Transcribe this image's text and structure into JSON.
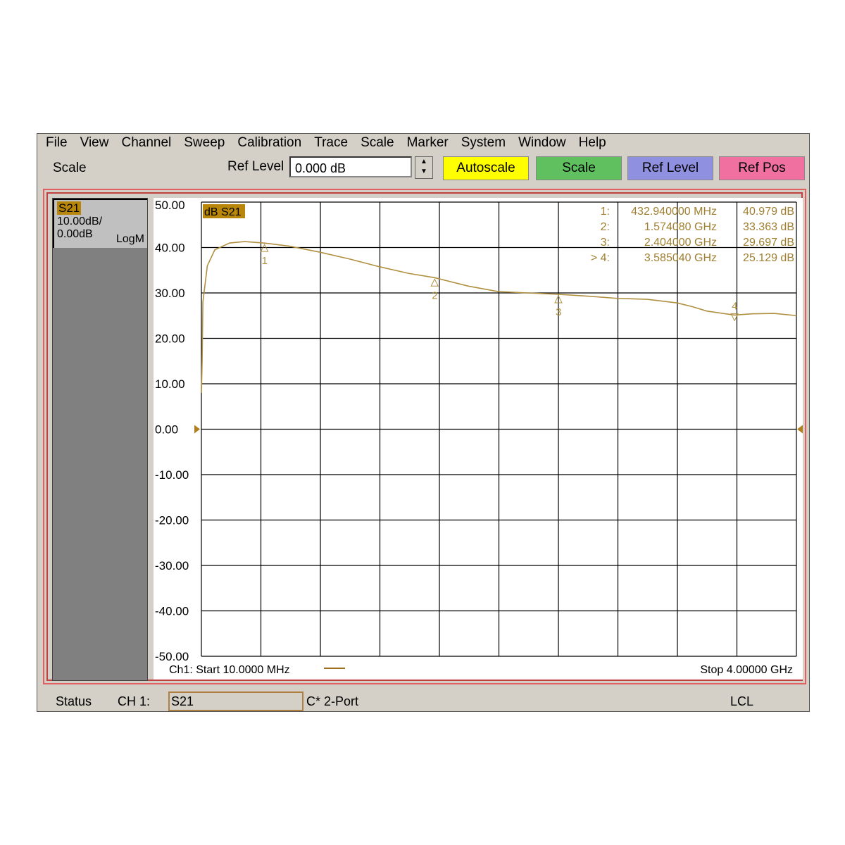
{
  "menu": [
    "File",
    "View",
    "Channel",
    "Sweep",
    "Calibration",
    "Trace",
    "Scale",
    "Marker",
    "System",
    "Window",
    "Help"
  ],
  "toolbar": {
    "section": "Scale",
    "ref_level_label": "Ref Level",
    "ref_level_value": "0.000 dB",
    "buttons": [
      {
        "label": "Autoscale",
        "color": "#ffff00"
      },
      {
        "label": "Scale",
        "color": "#60c060"
      },
      {
        "label": "Ref Level",
        "color": "#9090e0"
      },
      {
        "label": "Ref Pos",
        "color": "#f070a0"
      }
    ]
  },
  "trace_info": {
    "name": "S21",
    "scale": "10.00dB/",
    "ref": "0.00dB",
    "format": "LogM"
  },
  "plot_label": "dB S21",
  "markers": [
    {
      "id": "1:",
      "freq": "432.940000 MHz",
      "value": "40.979 dB"
    },
    {
      "id": "2:",
      "freq": "1.574080 GHz",
      "value": "33.363 dB"
    },
    {
      "id": "3:",
      "freq": "2.404000 GHz",
      "value": "29.697 dB"
    },
    {
      "id": "> 4:",
      "freq": "3.585040 GHz",
      "value": "25.129 dB"
    }
  ],
  "footer": {
    "start": "Ch1: Start  10.0000 MHz",
    "stop": "Stop  4.00000 GHz"
  },
  "status": {
    "label": "Status",
    "channel": "CH 1:",
    "param": "S21",
    "cal": "C* 2-Port",
    "lcl": "LCL"
  },
  "chart_data": {
    "type": "line",
    "xlim": [
      0.01,
      4.0
    ],
    "x_unit": "GHz",
    "ylim": [
      -50,
      50
    ],
    "y_ticks": [
      "50.00",
      "40.00",
      "30.00",
      "20.00",
      "10.00",
      "0.00",
      "-10.00",
      "-20.00",
      "-30.00",
      "-40.00",
      "-50.00"
    ],
    "grid": true,
    "trace_color": "#b09040",
    "series": [
      {
        "x": [
          0.01,
          0.015,
          0.02,
          0.05,
          0.1,
          0.2,
          0.3,
          0.433,
          0.6,
          0.8,
          1.0,
          1.2,
          1.4,
          1.574,
          1.8,
          2.0,
          2.2,
          2.404,
          2.6,
          2.8,
          3.0,
          3.2,
          3.3,
          3.4,
          3.585,
          3.7,
          3.85,
          4.0
        ],
        "y": [
          8,
          15,
          28,
          36,
          39.5,
          41,
          41.3,
          40.98,
          40.3,
          39,
          37.5,
          35.8,
          34.3,
          33.36,
          31.5,
          30.3,
          30,
          29.7,
          29.3,
          28.8,
          28.6,
          27.8,
          27,
          26,
          25.13,
          25.4,
          25.5,
          25
        ]
      }
    ],
    "marker_points": [
      {
        "label": "1",
        "x": 0.43294,
        "y": 40.979
      },
      {
        "label": "2",
        "x": 1.57408,
        "y": 33.363
      },
      {
        "label": "3",
        "x": 2.404,
        "y": 29.697
      },
      {
        "label": "4",
        "x": 3.58504,
        "y": 25.129
      }
    ]
  }
}
